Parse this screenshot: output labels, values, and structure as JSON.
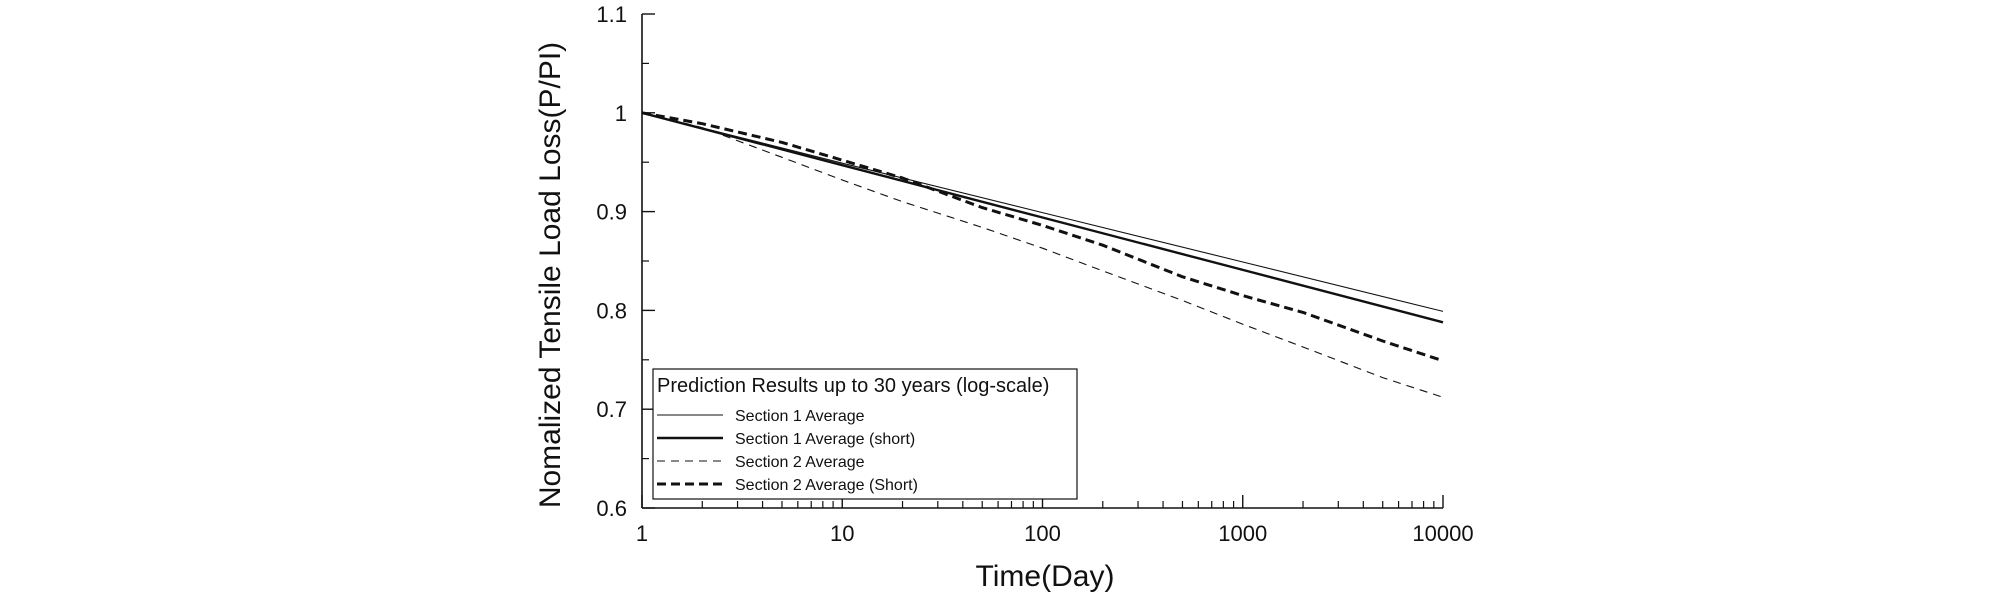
{
  "chart_data": {
    "type": "line",
    "title": "",
    "xlabel": "Time(Day)",
    "ylabel": "Nomalized Tensile Load Loss(P/PI)",
    "xscale": "log",
    "xlim": [
      1,
      10000
    ],
    "ylim": [
      0.6,
      1.1
    ],
    "x_ticks": [
      1,
      10,
      100,
      1000,
      10000
    ],
    "x_tick_labels": [
      "1",
      "10",
      "100",
      "1000",
      "10000"
    ],
    "y_ticks": [
      0.6,
      0.7,
      0.8,
      0.9,
      1.0,
      1.1
    ],
    "y_tick_labels": [
      "0.6",
      "0.7",
      "0.8",
      "0.9",
      "1",
      "1.1"
    ],
    "legend_title": "Prediction Results up to 30 years (log-scale)",
    "legend_position": "bottom-left",
    "grid": false,
    "series": [
      {
        "name": "Section 1 Average",
        "style": "thin-solid",
        "x": [
          1,
          10,
          100,
          1000,
          10000
        ],
        "y": [
          1.0,
          0.949,
          0.899,
          0.849,
          0.799
        ]
      },
      {
        "name": "Section 1 Average (short)",
        "style": "thick-solid",
        "x": [
          1,
          10,
          100,
          1000,
          10000
        ],
        "y": [
          1.0,
          0.947,
          0.894,
          0.841,
          0.788
        ]
      },
      {
        "name": "Section 2 Average",
        "style": "thin-dashed",
        "x": [
          1,
          2,
          5,
          10,
          20,
          50,
          100,
          200,
          500,
          1000,
          2000,
          5000,
          10000
        ],
        "y": [
          1.0,
          0.985,
          0.955,
          0.932,
          0.91,
          0.884,
          0.863,
          0.84,
          0.81,
          0.786,
          0.763,
          0.732,
          0.712
        ]
      },
      {
        "name": "Section 2 Average (Short)",
        "style": "thick-dashed",
        "x": [
          1,
          2,
          5,
          10,
          20,
          50,
          100,
          200,
          500,
          1000,
          2000,
          5000,
          10000
        ],
        "y": [
          1.0,
          0.989,
          0.97,
          0.952,
          0.934,
          0.904,
          0.886,
          0.866,
          0.834,
          0.815,
          0.798,
          0.769,
          0.749
        ]
      }
    ]
  },
  "colors": {
    "axis": "#111111",
    "line": "#111111",
    "background": "#ffffff"
  }
}
